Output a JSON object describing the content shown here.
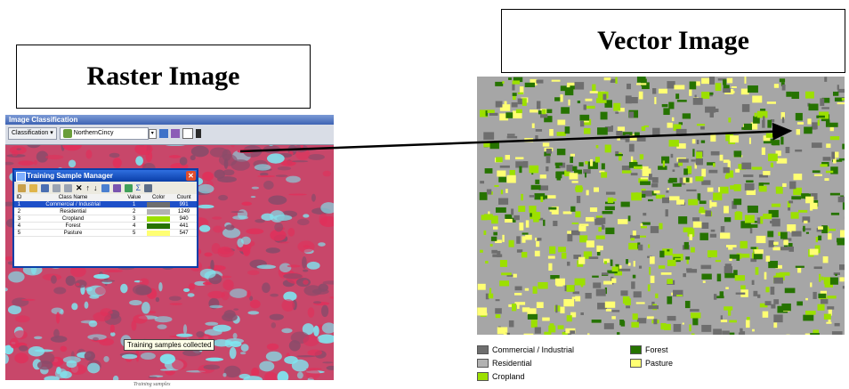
{
  "titles": {
    "raster": "Raster Image",
    "vector": "Vector Image"
  },
  "classification_toolbar": {
    "title": "Image Classification",
    "menu_label": "Classification",
    "layer": "NorthernCincy"
  },
  "training_sample_manager": {
    "title": "Training Sample Manager",
    "columns": [
      "ID",
      "Class Name",
      "Value",
      "Color",
      "Count"
    ],
    "rows": [
      {
        "id": "1",
        "name": "Commercial / Industrial",
        "value": "1",
        "color": "#6e6e6e",
        "count": "991"
      },
      {
        "id": "2",
        "name": "Residential",
        "value": "2",
        "color": "#b2b2b2",
        "count": "1249"
      },
      {
        "id": "3",
        "name": "Cropland",
        "value": "3",
        "color": "#9ce000",
        "count": "940"
      },
      {
        "id": "4",
        "name": "Forest",
        "value": "4",
        "color": "#267300",
        "count": "441"
      },
      {
        "id": "5",
        "name": "Pasture",
        "value": "5",
        "color": "#ffff73",
        "count": "547"
      }
    ]
  },
  "tooltip": "Training samples collected",
  "raster_caption": "Training samples",
  "legend": [
    {
      "label": "Commercial / Industrial",
      "color": "#6e6e6e"
    },
    {
      "label": "Forest",
      "color": "#267300"
    },
    {
      "label": "Residential",
      "color": "#b2b2b2"
    },
    {
      "label": "Pasture",
      "color": "#ffff73"
    },
    {
      "label": "Cropland",
      "color": "#9ce000"
    }
  ],
  "colors": {
    "raster_red": "#c8476a",
    "raster_cyan": "#7fe6f0",
    "vector_residential": "#a6a6a6",
    "vector_commercial": "#6e6e6e",
    "vector_forest": "#267300",
    "vector_cropland": "#9ce000",
    "vector_pasture": "#ffff73"
  }
}
